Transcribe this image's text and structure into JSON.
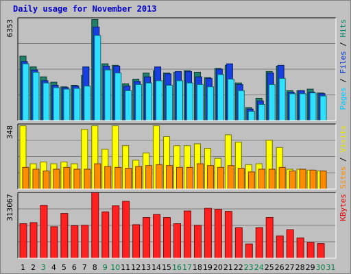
{
  "chart_data": {
    "type": "bar",
    "title": "Daily usage for November 2013",
    "categories": [
      "1",
      "2",
      "3",
      "4",
      "5",
      "6",
      "7",
      "8",
      "9",
      "10",
      "11",
      "12",
      "13",
      "14",
      "15",
      "16",
      "17",
      "18",
      "19",
      "20",
      "21",
      "22",
      "23",
      "24",
      "25",
      "26",
      "27",
      "28",
      "29",
      "30",
      "31"
    ],
    "weekend_days": [
      "3",
      "9",
      "10",
      "16",
      "17",
      "23",
      "24",
      "30",
      "31"
    ],
    "panels": [
      {
        "id": "traffic",
        "max_label": "6353",
        "ymax": 6700,
        "right_labels": [
          {
            "text": "Pages",
            "color": "#00c8ff"
          },
          {
            "text": " / ",
            "color": "#000000"
          },
          {
            "text": "Files",
            "color": "#0033cc"
          },
          {
            "text": " / ",
            "color": "#000000"
          },
          {
            "text": "Hits",
            "color": "#008060"
          }
        ],
        "series": [
          {
            "name": "Hits",
            "color": "#20806a",
            "values": [
              4200,
              3500,
              2850,
              2500,
              2200,
              2300,
              2950,
              6590,
              3700,
              3600,
              2400,
              2700,
              3100,
              3250,
              3100,
              3150,
              3250,
              3150,
              2800,
              3400,
              3600,
              2450,
              850,
              1450,
              3200,
              3550,
              1950,
              1950,
              2050,
              1800,
              0
            ]
          },
          {
            "name": "Files",
            "color": "#1840e0",
            "values": [
              3850,
              3300,
              2600,
              2300,
              2150,
              2250,
              3500,
              6100,
              3550,
              3550,
              2250,
              2550,
              2850,
              3500,
              3050,
              3200,
              3200,
              2850,
              2750,
              3350,
              3700,
              2350,
              750,
              1280,
              3100,
              3600,
              1850,
              1950,
              1850,
              1750,
              0
            ]
          },
          {
            "name": "Pages",
            "color": "#30e0ff",
            "values": [
              3700,
              3150,
              2450,
              2150,
              2050,
              2100,
              2250,
              5550,
              3300,
              3100,
              1950,
              2350,
              2450,
              2600,
              2300,
              2600,
              2450,
              2350,
              2200,
              3000,
              2700,
              1950,
              600,
              1050,
              2350,
              2750,
              1750,
              1750,
              1800,
              1600,
              0
            ]
          }
        ]
      },
      {
        "id": "visitors",
        "max_label": "348",
        "ymax": 360,
        "right_labels": [
          {
            "text": "Sites",
            "color": "#ff8c00"
          },
          {
            "text": " / ",
            "color": "#000000"
          },
          {
            "text": "Visits",
            "color": "#e6e600"
          }
        ],
        "series": [
          {
            "name": "Visits",
            "color": "#ffff00",
            "values": [
              350,
              140,
              150,
              140,
              150,
              140,
              330,
              350,
              220,
              350,
              240,
              160,
              200,
              350,
              290,
              240,
              240,
              250,
              225,
              170,
              300,
              260,
              135,
              140,
              270,
              230,
              110,
              110,
              105,
              100,
              0
            ]
          },
          {
            "name": "Sites",
            "color": "#ff8c00",
            "values": [
              120,
              110,
              100,
              110,
              120,
              110,
              110,
              140,
              125,
              120,
              115,
              125,
              130,
              135,
              130,
              120,
              120,
              140,
              130,
              120,
              130,
              115,
              95,
              110,
              110,
              120,
              100,
              110,
              105,
              100,
              0
            ]
          }
        ]
      },
      {
        "id": "kbytes",
        "max_label": "313067",
        "ymax": 323000,
        "right_labels": [
          {
            "text": "KBytes",
            "color": "#e00000"
          }
        ],
        "series": [
          {
            "name": "KBytes",
            "color": "#ff2020",
            "values": [
              170000,
              175000,
              260000,
              155000,
              220000,
              160000,
              162000,
              323000,
              228000,
              258000,
              280000,
              165000,
              200000,
              215000,
              200000,
              170000,
              232000,
              162000,
              245000,
              240000,
              230000,
              150000,
              70000,
              150000,
              200000,
              110000,
              140000,
              100000,
              78000,
              72000,
              0
            ]
          }
        ]
      }
    ]
  }
}
